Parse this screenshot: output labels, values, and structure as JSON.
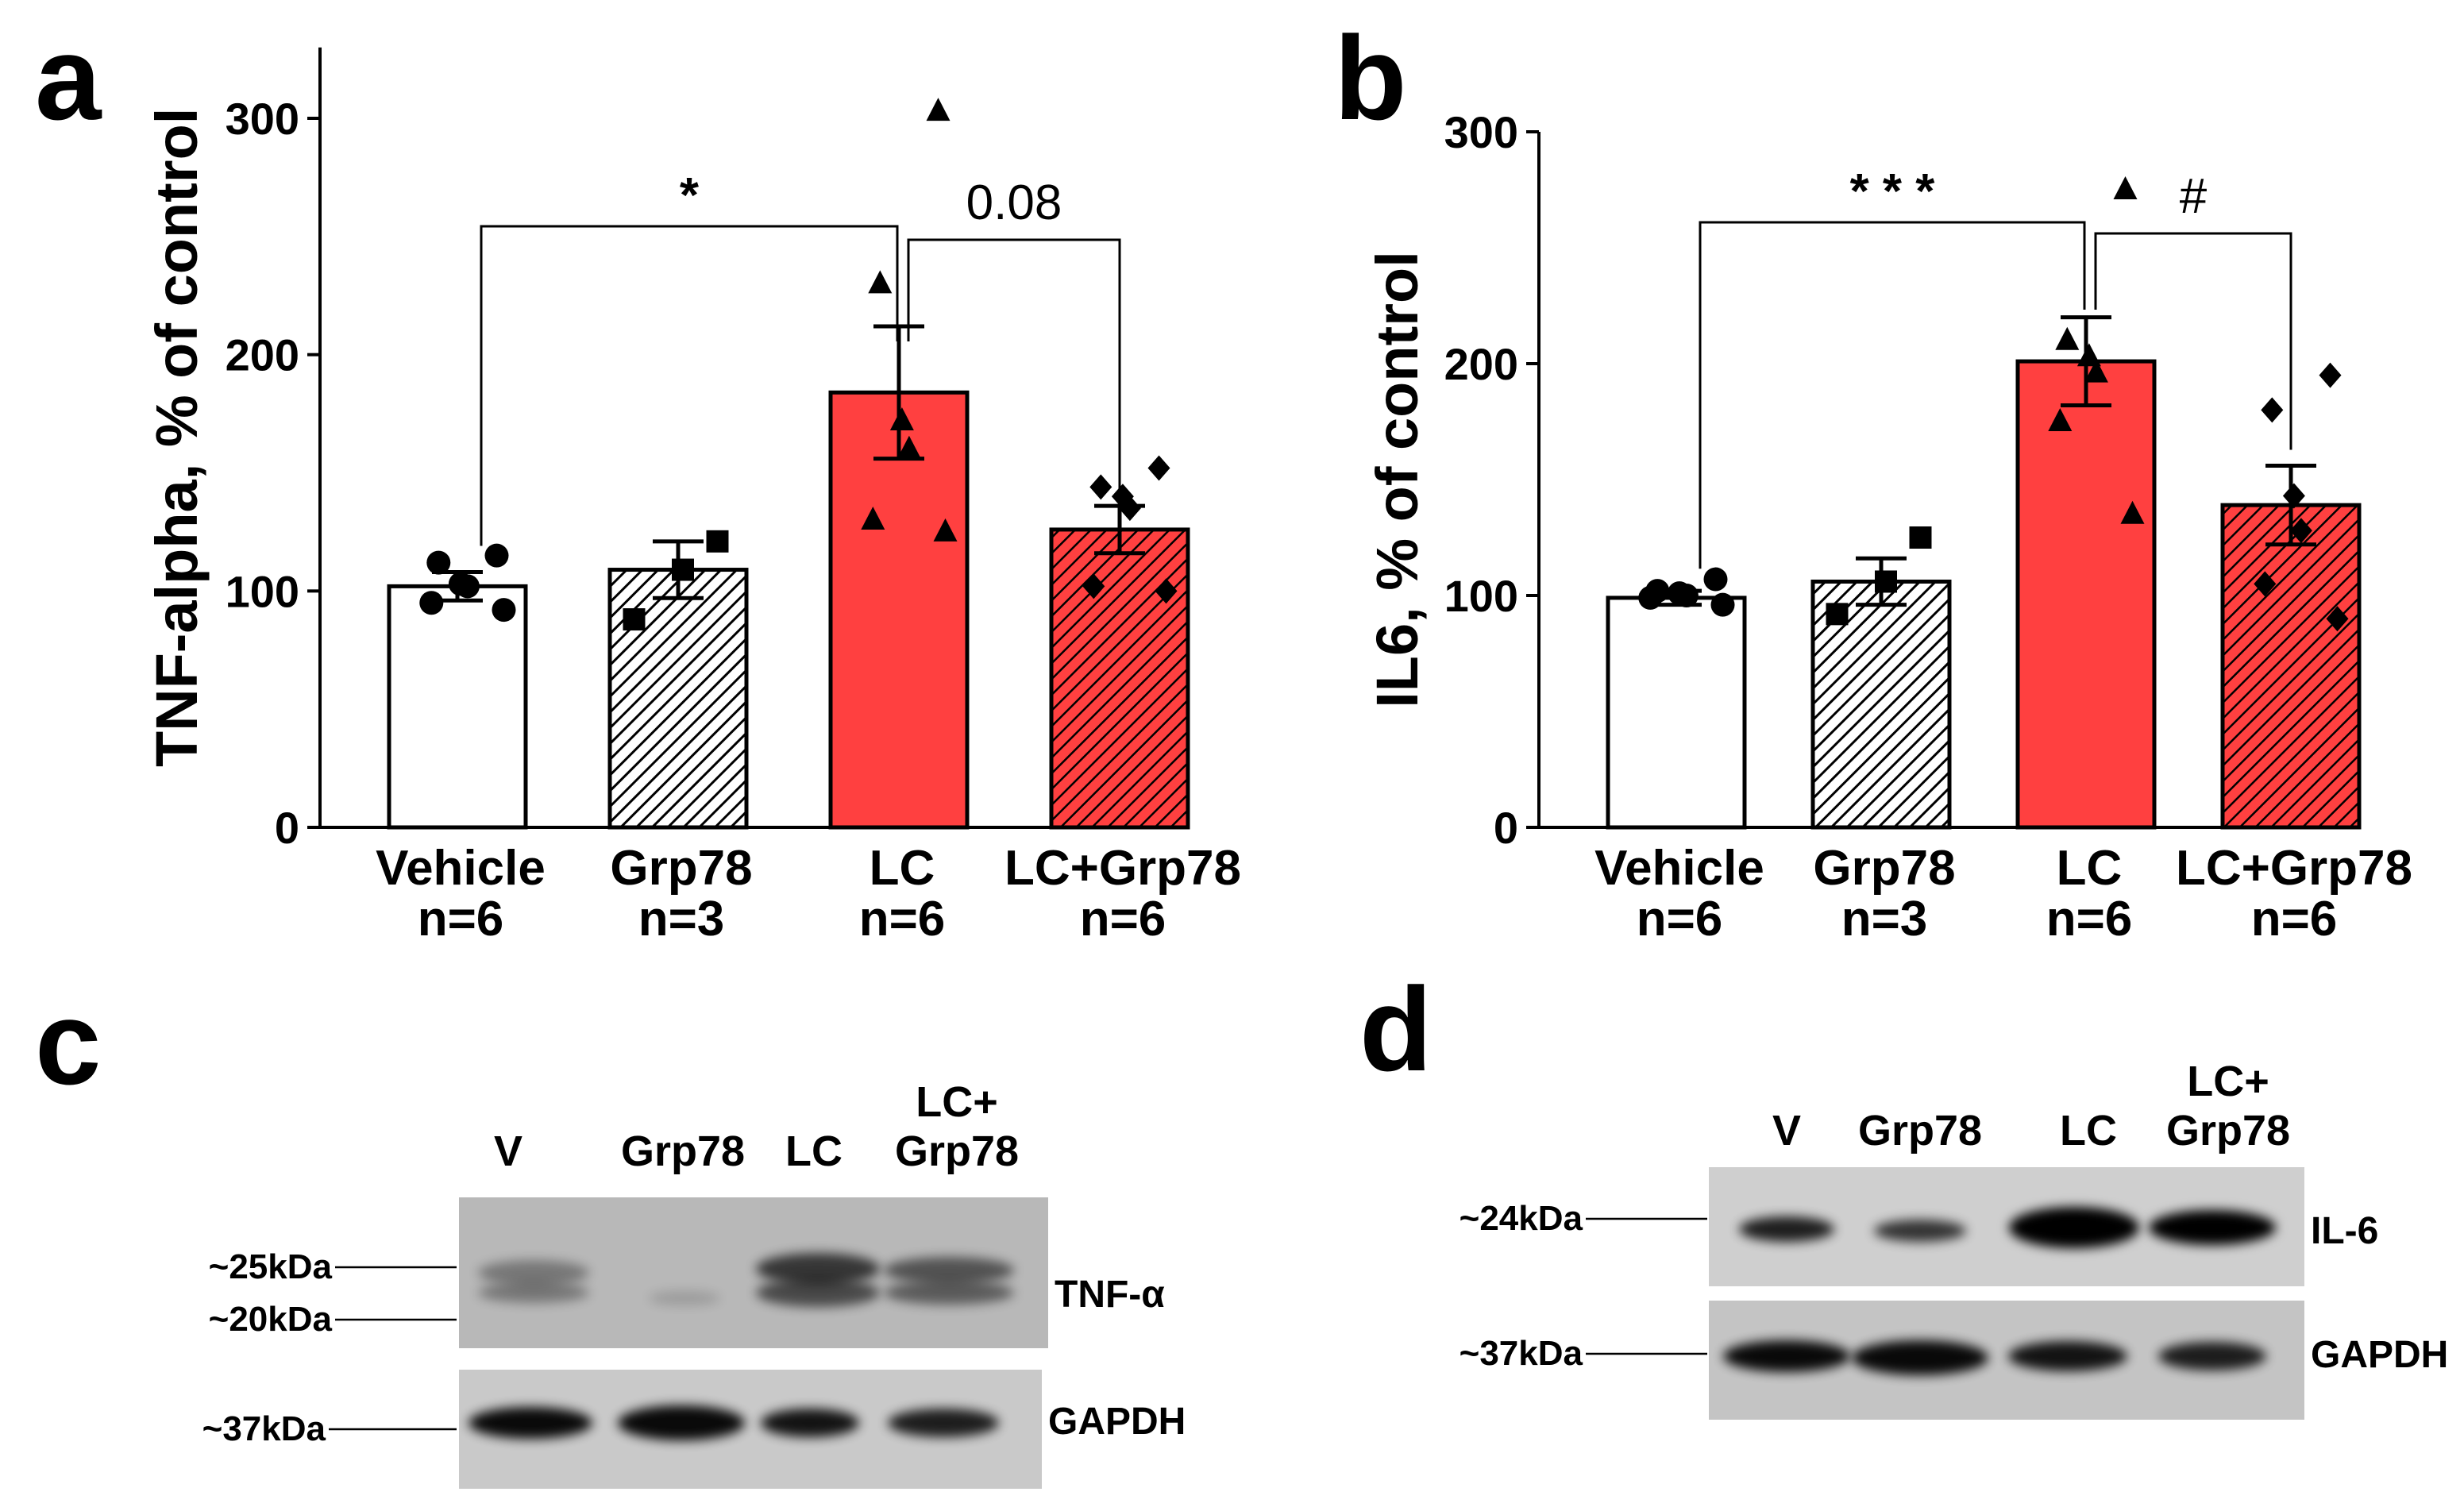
{
  "colors": {
    "vehicle": "#ffffff",
    "lc": "#ff4040",
    "lc_hatched_bg": "#ff4040",
    "stroke": "#000000"
  },
  "chart_data": [
    {
      "panel": "a",
      "type": "bar",
      "ylabel": "TNF-alpha, % of control",
      "ylim": [
        0,
        330
      ],
      "yticks": [
        "0",
        "100",
        "200",
        "300"
      ],
      "categories": [
        "Vehicle",
        "Grp78",
        "LC",
        "LC+Grp78"
      ],
      "n_labels": [
        "n=6",
        "n=3",
        "n=6",
        "n=6"
      ],
      "values": [
        102,
        109,
        184,
        126
      ],
      "errors": [
        6,
        12,
        28,
        10
      ],
      "fills": [
        "white",
        "hatch-white",
        "red",
        "hatch-red"
      ],
      "points": [
        [
          115,
          112,
          103,
          102,
          95,
          92
        ],
        [
          121,
          109,
          88
        ],
        [
          303,
          230,
          172,
          160,
          130,
          125
        ],
        [
          152,
          144,
          140,
          135,
          102,
          100
        ]
      ],
      "markers": [
        "circle",
        "square",
        "triangle",
        "diamond"
      ],
      "brackets": [
        {
          "from": 0,
          "to": 2,
          "label": "*"
        },
        {
          "from": 2,
          "to": 3,
          "label": "0.08"
        }
      ]
    },
    {
      "panel": "b",
      "type": "bar",
      "ylabel": "IL6, % of control",
      "ylim": [
        0,
        300
      ],
      "yticks": [
        "0",
        "100",
        "200",
        "300"
      ],
      "categories": [
        "Vehicle",
        "Grp78",
        "LC",
        "LC+Grp78"
      ],
      "n_labels": [
        "n=6",
        "n=3",
        "n=6",
        "n=6"
      ],
      "values": [
        99,
        106,
        201,
        139
      ],
      "errors": [
        3,
        10,
        19,
        17
      ],
      "fills": [
        "white",
        "hatch-white",
        "red",
        "hatch-red"
      ],
      "points": [
        [
          107,
          102,
          101,
          100,
          99,
          96
        ],
        [
          125,
          106,
          92
        ],
        [
          275,
          210,
          203,
          196,
          175,
          135
        ],
        [
          195,
          180,
          143,
          128,
          105,
          90
        ]
      ],
      "markers": [
        "circle",
        "square",
        "triangle",
        "diamond"
      ],
      "brackets": [
        {
          "from": 0,
          "to": 2,
          "label": "***"
        },
        {
          "from": 2,
          "to": 3,
          "label": "#"
        }
      ]
    }
  ],
  "blots": [
    {
      "panel": "c",
      "lanes": [
        "V",
        "Grp78",
        "LC",
        "LC+\nGrp78"
      ],
      "lane_lines": [
        [
          "V"
        ],
        [
          "Grp78"
        ],
        [
          "LC"
        ],
        [
          "LC+",
          "Grp78"
        ]
      ],
      "target_label": "TNF-α",
      "loading_label": "GAPDH",
      "markers": [
        "~25kDa",
        "~20kDa",
        "~37kDa"
      ]
    },
    {
      "panel": "d",
      "lanes": [
        "V",
        "Grp78",
        "LC",
        "LC+\nGrp78"
      ],
      "lane_lines": [
        [
          "V"
        ],
        [
          "Grp78"
        ],
        [
          "LC"
        ],
        [
          "LC+",
          "Grp78"
        ]
      ],
      "target_label": "IL-6",
      "loading_label": "GAPDH",
      "markers": [
        "~24kDa",
        "~37kDa"
      ]
    }
  ],
  "panels": {
    "a": "a",
    "b": "b",
    "c": "c",
    "d": "d"
  }
}
